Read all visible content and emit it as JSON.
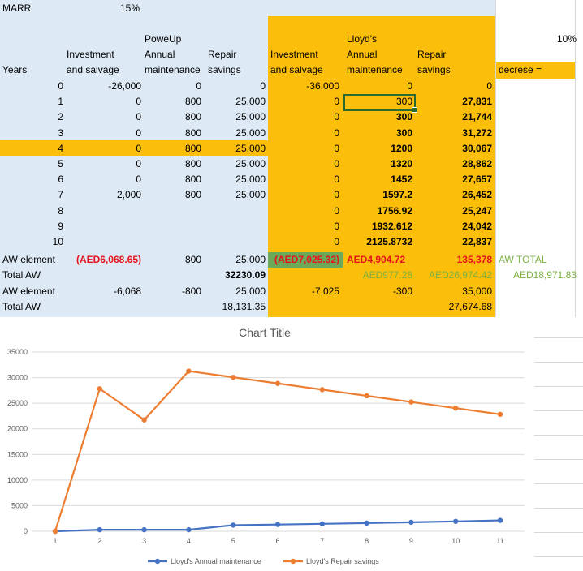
{
  "sheet": {
    "marr_label": "MARR",
    "marr_value": "15%",
    "rate_value": "10%",
    "decrease_label": "decrese =",
    "years_header": "Years",
    "powerup": {
      "name": "PoweUp",
      "h_investment_1": "Investment",
      "h_investment_2": "and salvage",
      "h_annual_1": "Annual",
      "h_annual_2": "maintenance",
      "h_repair_1": "Repair",
      "h_repair_2": "savings"
    },
    "lloyds": {
      "name": "Lloyd's",
      "h_investment_1": "Investment",
      "h_investment_2": "and salvage",
      "h_annual_1": "Annual",
      "h_annual_2": "maintenance",
      "h_repair_1": "Repair",
      "h_repair_2": "savings"
    },
    "rows": [
      {
        "year": "0",
        "p_inv": "-26,000",
        "p_ann": "0",
        "p_rep": "0",
        "l_inv": "-36,000",
        "l_ann": "0",
        "l_rep": "0"
      },
      {
        "year": "1",
        "p_inv": "0",
        "p_ann": "800",
        "p_rep": "25,000",
        "l_inv": "0",
        "l_ann": "300",
        "l_rep": "27,831"
      },
      {
        "year": "2",
        "p_inv": "0",
        "p_ann": "800",
        "p_rep": "25,000",
        "l_inv": "0",
        "l_ann": "300",
        "l_rep": "21,744"
      },
      {
        "year": "3",
        "p_inv": "0",
        "p_ann": "800",
        "p_rep": "25,000",
        "l_inv": "0",
        "l_ann": "300",
        "l_rep": "31,272"
      },
      {
        "year": "4",
        "p_inv": "0",
        "p_ann": "800",
        "p_rep": "25,000",
        "l_inv": "0",
        "l_ann": "1200",
        "l_rep": "30,067"
      },
      {
        "year": "5",
        "p_inv": "0",
        "p_ann": "800",
        "p_rep": "25,000",
        "l_inv": "0",
        "l_ann": "1320",
        "l_rep": "28,862"
      },
      {
        "year": "6",
        "p_inv": "0",
        "p_ann": "800",
        "p_rep": "25,000",
        "l_inv": "0",
        "l_ann": "1452",
        "l_rep": "27,657"
      },
      {
        "year": "7",
        "p_inv": "2,000",
        "p_ann": "800",
        "p_rep": "25,000",
        "l_inv": "0",
        "l_ann": "1597.2",
        "l_rep": "26,452"
      },
      {
        "year": "8",
        "p_inv": "",
        "p_ann": "",
        "p_rep": "",
        "l_inv": "0",
        "l_ann": "1756.92",
        "l_rep": "25,247"
      },
      {
        "year": "9",
        "p_inv": "",
        "p_ann": "",
        "p_rep": "",
        "l_inv": "0",
        "l_ann": "1932.612",
        "l_rep": "24,042"
      },
      {
        "year": "10",
        "p_inv": "",
        "p_ann": "",
        "p_rep": "",
        "l_inv": "0",
        "l_ann": "2125.8732",
        "l_rep": "22,837"
      }
    ],
    "aw_element_label": "AW element",
    "aw_element": {
      "p_inv": "(AED6,068.65)",
      "p_ann": "800",
      "p_rep": "25,000",
      "l_inv": "(AED7,025.32)",
      "l_ann": "AED4,904.72",
      "l_rep": "135,378",
      "extra": "AW TOTAL"
    },
    "total_aw_label": "Total AW",
    "total_aw_1": {
      "p_rep": "32230.09",
      "l_ann": "AED977.28",
      "l_rep": "AED26,974.42",
      "extra": "AED18,971.83"
    },
    "aw_element2_label": "AW element",
    "aw_element_2": {
      "p_inv": "-6,068",
      "p_ann": "-800",
      "p_rep": "25,000",
      "l_inv": "-7,025",
      "l_ann": "-300",
      "l_rep": "35,000"
    },
    "total_aw2_label": "Total AW",
    "total_aw_2": {
      "p_rep": "18,131.35",
      "l_rep": "27,674.68"
    },
    "selected_cell": "Lloyd's Annual maintenance year 1"
  },
  "colors": {
    "blue_fill": "#dde9f5",
    "orange_fill": "#fbbe0a",
    "green_fill": "#6aaa5a",
    "red_text": "#e4141b",
    "green_text": "#7bb142",
    "series_maintenance": "#4472c4",
    "series_repair": "#ed7d31"
  },
  "chart_data": {
    "type": "line",
    "title": "Chart Title",
    "x": [
      1,
      2,
      3,
      4,
      5,
      6,
      7,
      8,
      9,
      10,
      11
    ],
    "ylim": [
      0,
      35000
    ],
    "yticks": [
      0,
      5000,
      10000,
      15000,
      20000,
      25000,
      30000,
      35000
    ],
    "grid": true,
    "legend_position": "bottom",
    "series": [
      {
        "name": "Lloyd's Annual  maintenance",
        "color": "#4472c4",
        "values": [
          0,
          300,
          300,
          300,
          1200,
          1320,
          1452,
          1597.2,
          1756.92,
          1932.612,
          2125.8732
        ]
      },
      {
        "name": "Lloyd's Repair savings",
        "color": "#ed7d31",
        "values": [
          0,
          27831,
          21744,
          31272,
          30067,
          28862,
          27657,
          26452,
          25247,
          24042,
          22837
        ]
      }
    ]
  }
}
